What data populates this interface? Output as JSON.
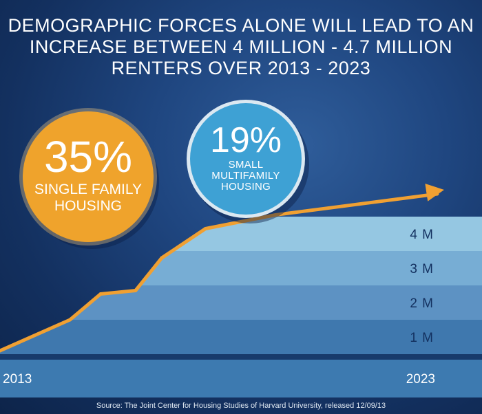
{
  "title_lines": [
    "DEMOGRAPHIC FORCES ALONE WILL LEAD TO AN",
    "INCREASE BETWEEN 4 MILLION - 4.7 MILLION",
    "RENTERS OVER 2013 - 2023"
  ],
  "callouts": [
    {
      "percent": "35%",
      "label_lines": [
        "SINGLE FAMILY",
        "HOUSING"
      ],
      "color": "#efa32c"
    },
    {
      "percent": "19%",
      "label_lines": [
        "SMALL",
        "MULTIFAMILY",
        "HOUSING"
      ],
      "color": "#3ea1d4"
    }
  ],
  "source": "Source: The Joint Center for Housing Studies of Harvard University, released 12/09/13",
  "chart_data": {
    "type": "line",
    "x_start_label": "2013",
    "x_end_label": "2023",
    "xlim": [
      2013,
      2023
    ],
    "ylim": [
      0,
      4
    ],
    "y_ticks": [
      "1 M",
      "2 M",
      "3 M",
      "4 M"
    ],
    "band_colors": [
      "#3f78ae",
      "#5d92c3",
      "#77add4",
      "#95c7e2"
    ],
    "line_color": "#f0a032",
    "x": [
      2013,
      2014.6,
      2015.3,
      2016.1,
      2016.7,
      2017.7,
      2019.3
    ],
    "values": [
      0.1,
      1.0,
      1.75,
      1.85,
      2.8,
      3.65,
      4.05
    ],
    "arrow": true
  }
}
